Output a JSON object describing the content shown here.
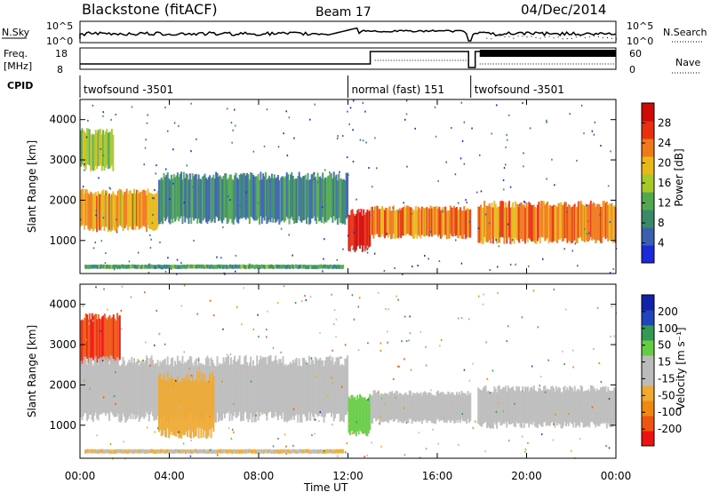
{
  "header": {
    "station": "Blackstone (fitACF)",
    "beam": "Beam 17",
    "date": "04/Dec/2014"
  },
  "top_panels": {
    "nsky_label": "N.Sky",
    "nsky_ticks": [
      "10^5",
      "10^0"
    ],
    "nsearch_label": "N.Search",
    "nsearch_ticks": [
      "10^5",
      "10^0"
    ],
    "freq_label_1": "Freq.",
    "freq_label_2": "[MHz]",
    "freq_ticks": [
      "18",
      "8"
    ],
    "nave_label": "Nave",
    "nave_ticks": [
      "60",
      "0"
    ],
    "cpid_label": "CPID",
    "cpid_segments": [
      {
        "label": "twofsound -3501",
        "start_hour": 0,
        "end_hour": 12.0
      },
      {
        "label": "normal (fast) 151",
        "start_hour": 12.0,
        "end_hour": 17.5
      },
      {
        "label": "twofsound -3501",
        "start_hour": 17.5,
        "end_hour": 24
      }
    ]
  },
  "x_axis": {
    "label": "Time UT",
    "ticks": [
      "00:00",
      "04:00",
      "08:00",
      "12:00",
      "16:00",
      "20:00",
      "00:00"
    ],
    "range_hours": [
      0,
      24
    ]
  },
  "colors": {
    "power_scale": [
      "#1a2ad8",
      "#3a5fb0",
      "#3a8a6a",
      "#50a850",
      "#a8c828",
      "#e8b818",
      "#f07818",
      "#e83010",
      "#d00808"
    ],
    "velocity_scale": [
      "#ee1111",
      "#ee5511",
      "#ee8811",
      "#eeaa33",
      "#bbbbbb",
      "#bbbbbb",
      "#66cc44",
      "#339955",
      "#2244bb",
      "#1122aa"
    ]
  },
  "chart_data": [
    {
      "type": "heatmap",
      "title": "",
      "ylabel": "Slant Range [km]",
      "xlabel": "",
      "ylim": [
        180,
        4500
      ],
      "yticks": [
        1000,
        2000,
        3000,
        4000
      ],
      "colorbar": {
        "label": "Power [dB]",
        "ticks": [
          "4",
          "8",
          "12",
          "16",
          "20",
          "24",
          "28"
        ],
        "range": [
          0,
          30
        ]
      },
      "echo_regions": [
        {
          "name": "E-region band",
          "hours": [
            0.2,
            11.8
          ],
          "range_km": [
            300,
            400
          ],
          "power_db": 10
        },
        {
          "name": "main F band (early)",
          "hours": [
            0.0,
            3.5
          ],
          "range_km": [
            1300,
            2200
          ],
          "power_db": 20
        },
        {
          "name": "main F band",
          "hours": [
            3.5,
            12.0
          ],
          "range_km": [
            1500,
            2600
          ],
          "power_db": 8
        },
        {
          "name": "high echoes",
          "hours": [
            0.0,
            1.5
          ],
          "range_km": [
            2800,
            3700
          ],
          "power_db": 14
        },
        {
          "name": "descending band",
          "hours": [
            12.0,
            13.0
          ],
          "range_km": [
            800,
            1700
          ],
          "power_db": 28
        },
        {
          "name": "afternoon band",
          "hours": [
            13.0,
            17.5
          ],
          "range_km": [
            1100,
            1800
          ],
          "power_db": 22
        },
        {
          "name": "evening band",
          "hours": [
            17.8,
            24.0
          ],
          "range_km": [
            1000,
            1900
          ],
          "power_db": 22
        }
      ]
    },
    {
      "type": "heatmap",
      "title": "",
      "ylabel": "Slant Range [km]",
      "xlabel": "Time UT",
      "ylim": [
        180,
        4500
      ],
      "yticks": [
        1000,
        2000,
        3000,
        4000
      ],
      "colorbar": {
        "label": "Velocity [m s^-1]",
        "ticks": [
          "200",
          "100",
          "50",
          "15",
          "-15",
          "-50",
          "-100",
          "-200"
        ],
        "range": [
          -250,
          250
        ]
      },
      "echo_regions": [
        {
          "name": "E-region band",
          "hours": [
            0.2,
            11.8
          ],
          "range_km": [
            300,
            400
          ],
          "velocity": -50
        },
        {
          "name": "high echoes",
          "hours": [
            0.0,
            1.8
          ],
          "range_km": [
            2600,
            3700
          ],
          "velocity": -200
        },
        {
          "name": "main F band",
          "hours": [
            0.0,
            12.0
          ],
          "range_km": [
            1200,
            2600
          ],
          "velocity": 0
        },
        {
          "name": "orange patches",
          "hours": [
            3.5,
            6.0
          ],
          "range_km": [
            800,
            2200
          ],
          "velocity": -60
        },
        {
          "name": "descending band",
          "hours": [
            12.0,
            13.0
          ],
          "range_km": [
            800,
            1700
          ],
          "velocity": 60
        },
        {
          "name": "afternoon band",
          "hours": [
            13.0,
            17.5
          ],
          "range_km": [
            1100,
            1800
          ],
          "velocity": 0
        },
        {
          "name": "evening band",
          "hours": [
            17.8,
            24.0
          ],
          "range_km": [
            1000,
            1900
          ],
          "velocity": 0
        }
      ]
    }
  ]
}
